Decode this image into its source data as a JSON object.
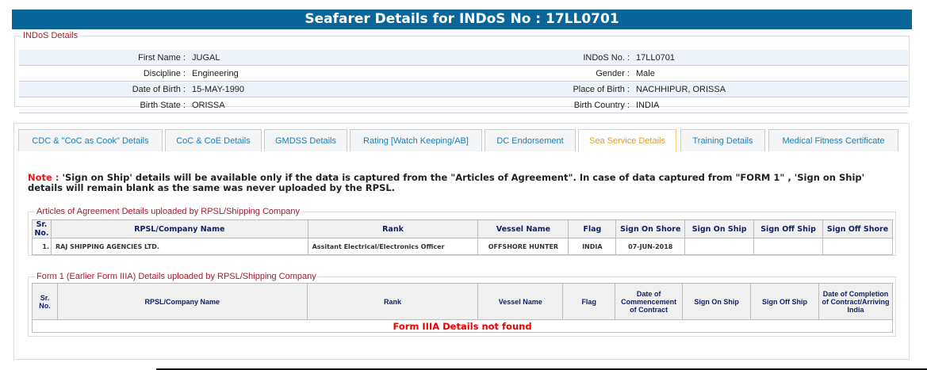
{
  "header": {
    "title": "Seafarer Details for INDoS No : 17LL0701"
  },
  "indos": {
    "legend": "INDoS Details",
    "rows": [
      {
        "l1": "First Name :",
        "v1": "JUGAL",
        "l2": "INDoS No. :",
        "v2": "17LL0701"
      },
      {
        "l1": "Discipline :",
        "v1": "Engineering",
        "l2": "Gender :",
        "v2": "Male"
      },
      {
        "l1": "Date of Birth :",
        "v1": "15-MAY-1990",
        "l2": "Place of Birth :",
        "v2": "NACHHIPUR, ORISSA"
      },
      {
        "l1": "Birth State :",
        "v1": "ORISSA",
        "l2": "Birth Country :",
        "v2": "INDIA"
      }
    ]
  },
  "tabs": [
    "CDC & \"CoC as Cook\" Details",
    "CoC & CoE Details",
    "GMDSS Details",
    "Rating [Watch Keeping/AB]",
    "DC Endorsement",
    "Sea Service Details",
    "Training Details",
    "Medical Fitness Certificate"
  ],
  "active_tab": "Sea Service Details",
  "note": {
    "label": "Note :",
    "text": " 'Sign on Ship' details will be available only if the data is captured from the \"Articles of Agreement\". In case of data captured from \"FORM 1\" , 'Sign on Ship' details will remain blank as the same was never uploaded by the RPSL."
  },
  "articles": {
    "legend": "Articles of Agreement Details uploaded by RPSL/Shipping Company",
    "headers": [
      "Sr. No.",
      "RPSL/Company Name",
      "Rank",
      "Vessel Name",
      "Flag",
      "Sign On Shore",
      "Sign On Ship",
      "Sign Off Ship",
      "Sign Off Shore"
    ],
    "rows": [
      [
        "1.",
        "RAJ SHIPPING AGENCIES LTD.",
        "Assitant Electrical/Electronics Officer",
        "OFFSHORE HUNTER",
        "INDIA",
        "07-JUN-2018",
        "",
        "",
        ""
      ]
    ]
  },
  "form1": {
    "legend": "Form 1 (Earlier Form IIIA) Details uploaded by RPSL/Shipping Company",
    "headers": [
      "Sr. No.",
      "RPSL/Company Name",
      "Rank",
      "Vessel Name",
      "Flag",
      "Date of Commencement of Contract",
      "Sign On Ship",
      "Sign Off Ship",
      "Date of Completion of Contract/Arriving India"
    ],
    "empty": "Form IIIA Details not found"
  }
}
